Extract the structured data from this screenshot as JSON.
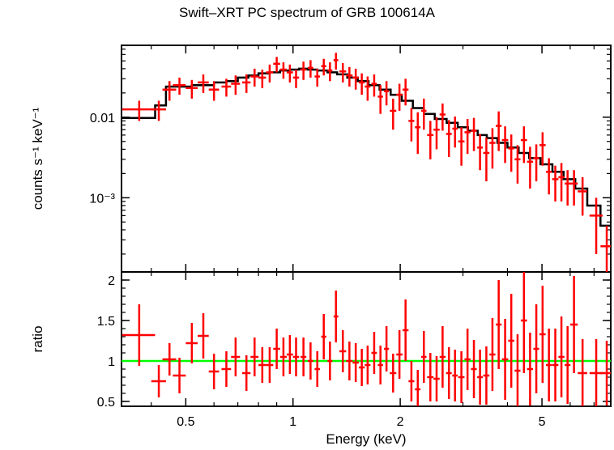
{
  "chart_data": [
    {
      "type": "scatter",
      "title": "Swift–XRT PC spectrum of GRB 100614A",
      "xlabel": "Energy (keV)",
      "ylabel": "counts s⁻¹ keV⁻¹",
      "xscale": "log",
      "yscale": "log",
      "xlim": [
        0.33,
        7.8
      ],
      "ylim": [
        0.00012,
        0.078
      ],
      "x_ticks": [
        {
          "value": 0.5,
          "label": "0.5"
        },
        {
          "value": 1,
          "label": "1"
        },
        {
          "value": 2,
          "label": "2"
        },
        {
          "value": 5,
          "label": "5"
        }
      ],
      "y_ticks": [
        {
          "value": 0.01,
          "label": "0.01"
        },
        {
          "value": 0.001,
          "label": "10⁻³"
        }
      ],
      "series": [
        {
          "kind": "data",
          "color": "#ff0000",
          "x": [
            0.37,
            0.42,
            0.45,
            0.48,
            0.52,
            0.56,
            0.6,
            0.65,
            0.69,
            0.74,
            0.78,
            0.82,
            0.86,
            0.9,
            0.94,
            0.98,
            1.02,
            1.07,
            1.12,
            1.17,
            1.22,
            1.27,
            1.32,
            1.38,
            1.44,
            1.5,
            1.56,
            1.62,
            1.69,
            1.76,
            1.83,
            1.91,
            1.99,
            2.07,
            2.15,
            2.24,
            2.33,
            2.43,
            2.53,
            2.63,
            2.74,
            2.85,
            2.97,
            3.09,
            3.22,
            3.35,
            3.49,
            3.63,
            3.78,
            3.94,
            4.1,
            4.27,
            4.45,
            4.63,
            4.82,
            5.02,
            5.23,
            5.45,
            5.67,
            5.9,
            6.15,
            6.5,
            7.1,
            7.6
          ],
          "xerr": [
            0.04,
            0.02,
            0.02,
            0.02,
            0.02,
            0.02,
            0.02,
            0.02,
            0.02,
            0.02,
            0.02,
            0.02,
            0.02,
            0.02,
            0.02,
            0.02,
            0.02,
            0.02,
            0.02,
            0.02,
            0.02,
            0.02,
            0.02,
            0.03,
            0.03,
            0.03,
            0.03,
            0.03,
            0.03,
            0.03,
            0.03,
            0.04,
            0.04,
            0.04,
            0.04,
            0.04,
            0.04,
            0.05,
            0.05,
            0.05,
            0.05,
            0.05,
            0.06,
            0.06,
            0.06,
            0.06,
            0.07,
            0.07,
            0.07,
            0.08,
            0.08,
            0.08,
            0.09,
            0.09,
            0.09,
            0.1,
            0.1,
            0.11,
            0.11,
            0.11,
            0.15,
            0.2,
            0.3,
            0.3
          ],
          "y": [
            0.0125,
            0.0125,
            0.022,
            0.025,
            0.023,
            0.027,
            0.022,
            0.024,
            0.026,
            0.027,
            0.032,
            0.031,
            0.036,
            0.046,
            0.039,
            0.036,
            0.031,
            0.039,
            0.041,
            0.032,
            0.043,
            0.038,
            0.051,
            0.037,
            0.033,
            0.031,
            0.027,
            0.024,
            0.026,
            0.018,
            0.021,
            0.012,
            0.019,
            0.022,
            0.009,
            0.0075,
            0.012,
            0.006,
            0.007,
            0.0108,
            0.0062,
            0.0072,
            0.005,
            0.0065,
            0.0068,
            0.0042,
            0.0036,
            0.0048,
            0.0078,
            0.0052,
            0.0041,
            0.003,
            0.0052,
            0.0028,
            0.0031,
            0.0045,
            0.0021,
            0.0017,
            0.0018,
            0.0015,
            0.0015,
            0.0012,
            0.0006,
            0.00025
          ],
          "yerr": [
            0.0035,
            0.0035,
            0.006,
            0.006,
            0.006,
            0.007,
            0.006,
            0.006,
            0.007,
            0.007,
            0.008,
            0.008,
            0.009,
            0.01,
            0.009,
            0.009,
            0.008,
            0.01,
            0.01,
            0.008,
            0.01,
            0.01,
            0.012,
            0.01,
            0.009,
            0.009,
            0.008,
            0.008,
            0.008,
            0.007,
            0.007,
            0.005,
            0.007,
            0.008,
            0.004,
            0.004,
            0.005,
            0.003,
            0.003,
            0.004,
            0.003,
            0.003,
            0.0025,
            0.003,
            0.003,
            0.002,
            0.002,
            0.0025,
            0.004,
            0.0025,
            0.002,
            0.0015,
            0.0025,
            0.0015,
            0.0015,
            0.002,
            0.001,
            0.0008,
            0.0009,
            0.0007,
            0.0007,
            0.0006,
            0.0004,
            0.0002
          ]
        },
        {
          "kind": "model",
          "color": "#000000",
          "step_x": [
            0.33,
            0.41,
            0.44,
            0.52,
            0.6,
            0.65,
            0.7,
            0.75,
            0.8,
            0.86,
            0.92,
            0.98,
            1.04,
            1.1,
            1.17,
            1.25,
            1.33,
            1.42,
            1.52,
            1.63,
            1.75,
            1.88,
            2.02,
            2.17,
            2.33,
            2.5,
            2.7,
            2.9,
            3.1,
            3.3,
            3.5,
            3.75,
            4.0,
            4.3,
            4.6,
            4.95,
            5.35,
            5.75,
            6.2,
            6.7,
            7.3,
            7.8
          ],
          "step_y": [
            0.0098,
            0.014,
            0.024,
            0.025,
            0.027,
            0.028,
            0.031,
            0.033,
            0.035,
            0.036,
            0.038,
            0.039,
            0.04,
            0.039,
            0.038,
            0.036,
            0.034,
            0.031,
            0.028,
            0.025,
            0.022,
            0.019,
            0.016,
            0.013,
            0.011,
            0.0095,
            0.0085,
            0.0075,
            0.0068,
            0.006,
            0.0055,
            0.0048,
            0.0042,
            0.0036,
            0.0031,
            0.0026,
            0.0021,
            0.0017,
            0.0013,
            0.0008,
            0.00045,
            0.00045
          ]
        }
      ]
    },
    {
      "type": "scatter",
      "xlabel": "Energy (keV)",
      "ylabel": "ratio",
      "xscale": "log",
      "xlim": [
        0.33,
        7.8
      ],
      "ylim": [
        0.44,
        2.1
      ],
      "y_ticks": [
        {
          "value": 0.5,
          "label": "0.5"
        },
        {
          "value": 1,
          "label": "1"
        },
        {
          "value": 1.5,
          "label": "1.5"
        },
        {
          "value": 2,
          "label": "2"
        }
      ],
      "reference_line": {
        "y": 1,
        "color": "#00ff00"
      },
      "series": [
        {
          "kind": "ratio",
          "color": "#ff0000",
          "x": [
            0.37,
            0.42,
            0.45,
            0.48,
            0.52,
            0.56,
            0.6,
            0.65,
            0.69,
            0.74,
            0.78,
            0.82,
            0.86,
            0.9,
            0.94,
            0.98,
            1.02,
            1.07,
            1.12,
            1.17,
            1.22,
            1.27,
            1.32,
            1.38,
            1.44,
            1.5,
            1.56,
            1.62,
            1.69,
            1.76,
            1.83,
            1.91,
            1.99,
            2.07,
            2.15,
            2.24,
            2.33,
            2.43,
            2.53,
            2.63,
            2.74,
            2.85,
            2.97,
            3.09,
            3.22,
            3.35,
            3.49,
            3.63,
            3.78,
            3.94,
            4.1,
            4.27,
            4.45,
            4.63,
            4.82,
            5.02,
            5.23,
            5.45,
            5.67,
            5.9,
            6.15,
            6.5,
            7.1,
            7.6
          ],
          "xerr": [
            0.04,
            0.02,
            0.02,
            0.02,
            0.02,
            0.02,
            0.02,
            0.02,
            0.02,
            0.02,
            0.02,
            0.02,
            0.02,
            0.02,
            0.02,
            0.02,
            0.02,
            0.02,
            0.02,
            0.02,
            0.02,
            0.02,
            0.02,
            0.03,
            0.03,
            0.03,
            0.03,
            0.03,
            0.03,
            0.03,
            0.03,
            0.04,
            0.04,
            0.04,
            0.04,
            0.04,
            0.04,
            0.05,
            0.05,
            0.05,
            0.05,
            0.05,
            0.06,
            0.06,
            0.06,
            0.06,
            0.07,
            0.07,
            0.07,
            0.08,
            0.08,
            0.08,
            0.09,
            0.09,
            0.09,
            0.1,
            0.1,
            0.11,
            0.11,
            0.11,
            0.15,
            0.2,
            0.3,
            0.3
          ],
          "y": [
            1.32,
            0.75,
            1.02,
            0.82,
            1.22,
            1.31,
            0.87,
            0.9,
            1.05,
            0.85,
            1.05,
            0.95,
            0.95,
            1.15,
            1.05,
            1.08,
            1.05,
            1.05,
            1.0,
            0.9,
            1.3,
            1.0,
            1.55,
            1.12,
            1.0,
            0.98,
            0.92,
            0.95,
            1.1,
            0.95,
            1.15,
            0.85,
            1.08,
            1.38,
            0.75,
            0.65,
            1.05,
            0.8,
            0.78,
            1.05,
            0.85,
            0.82,
            0.8,
            1.02,
            0.9,
            0.8,
            0.82,
            1.08,
            1.45,
            1.02,
            1.25,
            0.88,
            1.5,
            0.9,
            1.15,
            1.33,
            0.95,
            0.95,
            1.05,
            0.95,
            1.45,
            0.85,
            0.85,
            0.85
          ],
          "yerr": [
            0.38,
            0.2,
            0.2,
            0.22,
            0.25,
            0.28,
            0.22,
            0.22,
            0.24,
            0.22,
            0.24,
            0.22,
            0.22,
            0.25,
            0.24,
            0.24,
            0.24,
            0.24,
            0.23,
            0.22,
            0.28,
            0.24,
            0.32,
            0.26,
            0.24,
            0.24,
            0.23,
            0.24,
            0.26,
            0.24,
            0.28,
            0.24,
            0.3,
            0.38,
            0.25,
            0.24,
            0.32,
            0.3,
            0.28,
            0.38,
            0.32,
            0.32,
            0.32,
            0.38,
            0.36,
            0.34,
            0.36,
            0.45,
            0.55,
            0.5,
            0.58,
            0.45,
            0.65,
            0.45,
            0.55,
            0.6,
            0.45,
            0.45,
            0.5,
            0.48,
            0.6,
            0.42,
            0.42,
            0.4
          ]
        }
      ]
    }
  ]
}
